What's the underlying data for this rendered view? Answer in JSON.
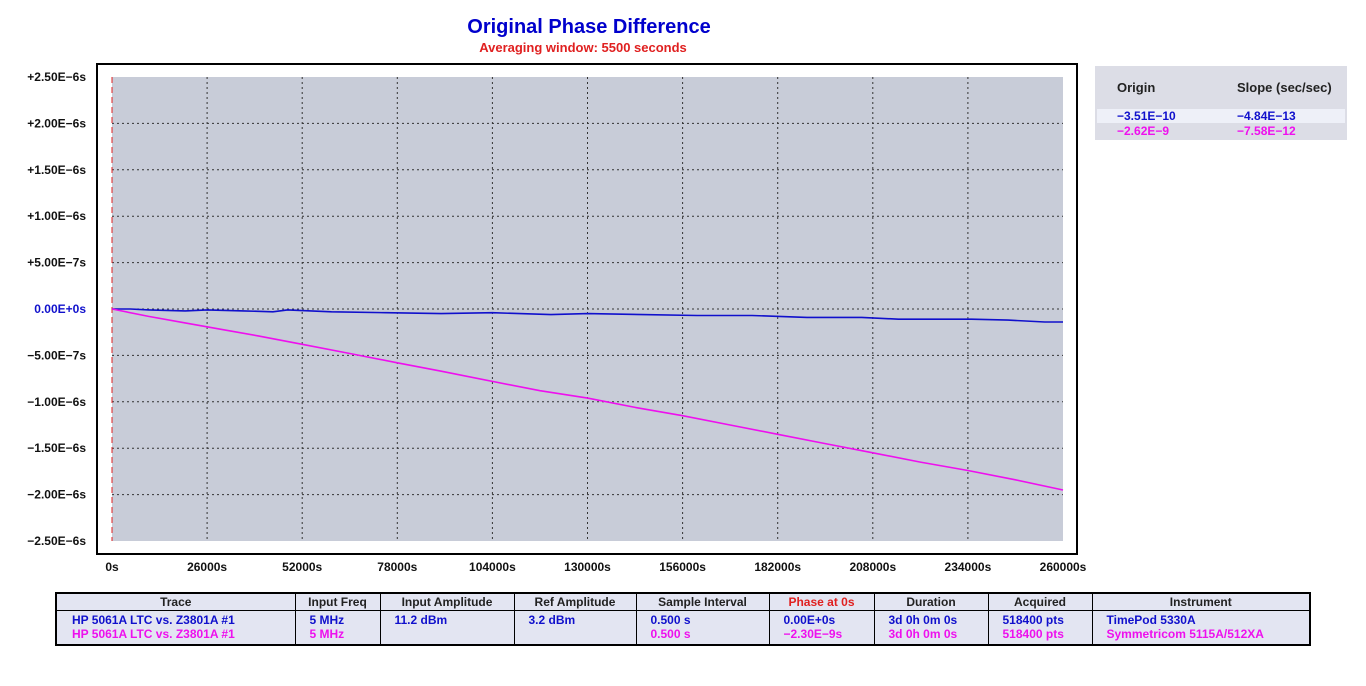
{
  "header": {
    "title": "Original Phase Difference",
    "subtitle": "Averaging window: 5500 seconds"
  },
  "chart_data": {
    "type": "line",
    "title": "Original Phase Difference",
    "subtitle": "Averaging window: 5500 seconds",
    "xlabel": "",
    "ylabel": "",
    "xlim": [
      0,
      260000
    ],
    "ylim": [
      -2.5e-06,
      2.5e-06
    ],
    "x_ticks": [
      0,
      26000,
      52000,
      78000,
      104000,
      130000,
      156000,
      182000,
      208000,
      234000,
      260000
    ],
    "x_tick_labels": [
      "0s",
      "26000s",
      "52000s",
      "78000s",
      "104000s",
      "130000s",
      "156000s",
      "182000s",
      "208000s",
      "234000s",
      "260000s"
    ],
    "y_ticks": [
      2.5e-06,
      2e-06,
      1.5e-06,
      1e-06,
      5e-07,
      0,
      -5e-07,
      -1e-06,
      -1.5e-06,
      -2e-06,
      -2.5e-06
    ],
    "y_tick_labels": [
      "+2.50E−6s",
      "+2.00E−6s",
      "+1.50E−6s",
      "+1.00E−6s",
      "+5.00E−7s",
      "0.00E+0s",
      "−5.00E−7s",
      "−1.00E−6s",
      "−1.50E−6s",
      "−2.00E−6s",
      "−2.50E−6s"
    ],
    "grid": true,
    "series": [
      {
        "color": "#1010cc",
        "x": [
          0,
          5000,
          10000,
          20000,
          26000,
          36000,
          44000,
          48000,
          60000,
          75000,
          90000,
          104000,
          120000,
          130000,
          145000,
          160000,
          175000,
          190000,
          205000,
          215000,
          225000,
          235000,
          245000,
          255000,
          260000
        ],
        "y": [
          0,
          0,
          -1e-08,
          -2e-08,
          -1e-08,
          -2e-08,
          -3e-08,
          -1e-08,
          -3e-08,
          -4e-08,
          -5e-08,
          -4e-08,
          -6e-08,
          -5e-08,
          -6e-08,
          -7e-08,
          -7e-08,
          -9e-08,
          -9e-08,
          -1.1e-07,
          -1.1e-07,
          -1.1e-07,
          -1.2e-07,
          -1.4e-07,
          -1.4e-07
        ]
      },
      {
        "color": "#ee10ee",
        "x": [
          0,
          10000,
          20000,
          30000,
          40000,
          52000,
          65000,
          78000,
          90000,
          104000,
          117000,
          130000,
          143000,
          156000,
          169000,
          182000,
          195000,
          208000,
          221000,
          234000,
          247000,
          260000
        ],
        "y": [
          0,
          -8e-08,
          -1.5e-07,
          -2.2e-07,
          -2.9e-07,
          -3.8e-07,
          -4.8e-07,
          -5.8e-07,
          -6.7e-07,
          -7.8e-07,
          -8.8e-07,
          -9.6e-07,
          -1.06e-06,
          -1.15e-06,
          -1.25e-06,
          -1.35e-06,
          -1.45e-06,
          -1.55e-06,
          -1.65e-06,
          -1.74e-06,
          -1.84e-06,
          -1.95e-06
        ]
      }
    ]
  },
  "fit_panel": {
    "origin_header": "Origin",
    "slope_header": "Slope (sec/sec)",
    "rows": [
      {
        "origin": "−3.51E−10",
        "slope": "−4.84E−13",
        "color": "#1010cc"
      },
      {
        "origin": "−2.62E−9",
        "slope": "−7.58E−12",
        "color": "#ee10ee"
      }
    ]
  },
  "info_table": {
    "headers": [
      "Trace",
      "Input Freq",
      "Input Amplitude",
      "Ref Amplitude",
      "Sample Interval",
      "Phase at 0s",
      "Duration",
      "Acquired",
      "Instrument"
    ],
    "rows": [
      [
        "HP 5061A LTC vs. Z3801A #1",
        "5 MHz",
        "11.2 dBm",
        "3.2 dBm",
        "0.500 s",
        "0.00E+0s",
        "3d 0h 0m 0s",
        "518400 pts",
        "TimePod 5330A"
      ],
      [
        "HP 5061A LTC vs. Z3801A #1",
        "5 MHz",
        "",
        "",
        "0.500 s",
        "−2.30E−9s",
        "3d 0h 0m 0s",
        "518400 pts",
        "Symmetricom 5115A/512XA"
      ]
    ]
  }
}
